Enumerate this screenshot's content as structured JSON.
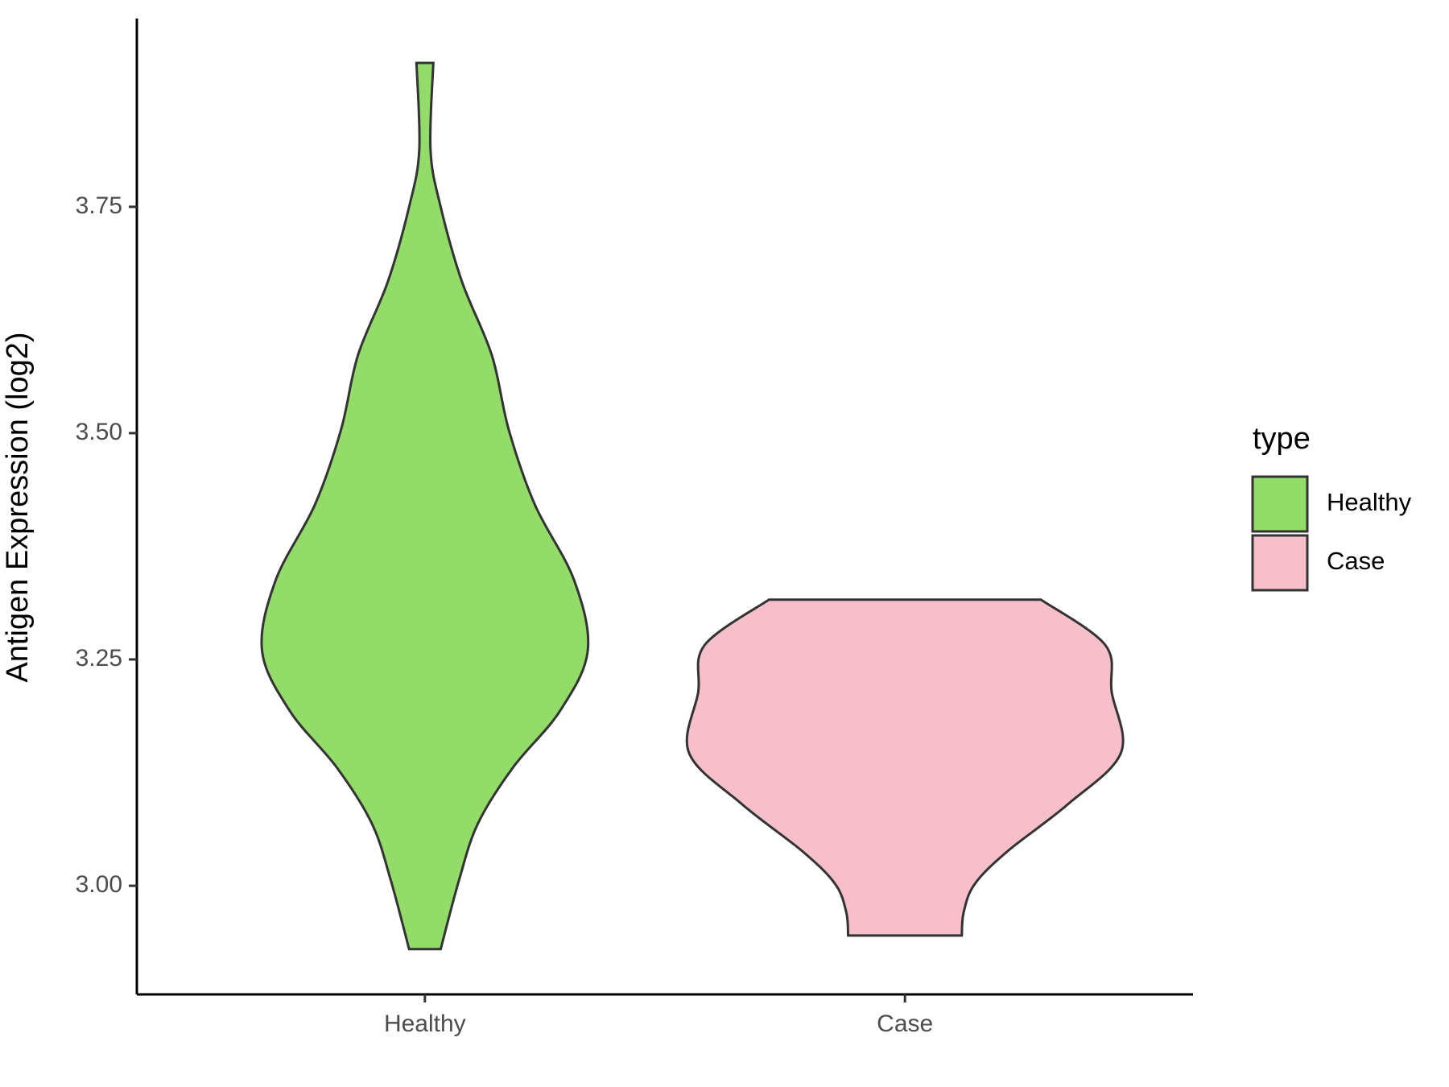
{
  "chart_data": {
    "type": "violin",
    "y_label": "Antigen Expression (log2)",
    "categories": [
      "Healthy",
      "Case"
    ],
    "series": [
      {
        "name": "Healthy",
        "color": "#93dc6a",
        "y": [
          3.909,
          3.813,
          3.75,
          3.667,
          3.586,
          3.504,
          3.421,
          3.338,
          3.26,
          3.193,
          3.131,
          3.069,
          3.007,
          2.93
        ],
        "density": [
          0.039,
          0.026,
          0.073,
          0.172,
          0.31,
          0.388,
          0.509,
          0.69,
          0.754,
          0.625,
          0.409,
          0.246,
          0.159,
          0.073
        ]
      },
      {
        "name": "Case",
        "color": "#f7bfca",
        "y": [
          3.316,
          3.266,
          3.214,
          3.147,
          3.09,
          3.038,
          3.002,
          2.971,
          2.945
        ],
        "density": [
          0.63,
          0.927,
          0.957,
          1,
          0.754,
          0.474,
          0.323,
          0.272,
          0.263
        ]
      }
    ],
    "ylim": [
      2.88,
      3.958
    ],
    "yticks": [
      {
        "value": 3,
        "label": "3.00"
      },
      {
        "value": 3.25,
        "label": "3.25"
      },
      {
        "value": 3.5,
        "label": "3.50"
      },
      {
        "value": 3.75,
        "label": "3.75"
      }
    ],
    "legend_title": "type",
    "legend_position": "right"
  }
}
